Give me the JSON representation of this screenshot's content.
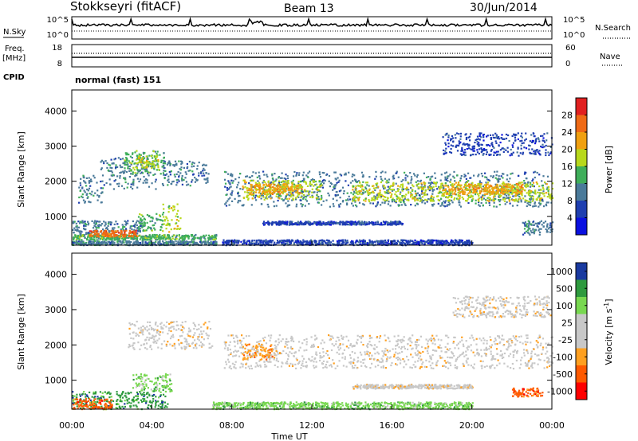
{
  "header": {
    "station": "Stokkseyri (fitACF)",
    "beam": "Beam 13",
    "date": "30/Jun/2014"
  },
  "colors": {
    "power_scale": [
      "#0a10e0",
      "#1f3fb0",
      "#4a7a9a",
      "#3fae5a",
      "#b8d81c",
      "#f0a010",
      "#ef6a16",
      "#e12020"
    ],
    "velocity_scale": [
      "#ff0000",
      "#ff5a00",
      "#ffa020",
      "#c8c8c8",
      "#c8c8c8",
      "#78d850",
      "#2e9a3e",
      "#1a3aa0"
    ]
  },
  "chart_data": [
    {
      "type": "line",
      "panel": "noise",
      "left_label": "N.Sky",
      "right_label": "N.Search",
      "left_ticks": [
        "10^5",
        "10^0"
      ],
      "right_ticks": [
        "10^5",
        "10^0"
      ]
    },
    {
      "type": "line",
      "panel": "frequency-nave",
      "left_label": "Freq.",
      "left_unit": "[MHz]",
      "right_label": "Nave",
      "left_ticks": [
        "18",
        "8"
      ],
      "right_ticks": [
        "60",
        "0"
      ]
    },
    {
      "type": "heatmap",
      "panel": "power",
      "cpid_label": "CPID",
      "cpid": "normal (fast) 151",
      "ylabel": "Slant Range [km]",
      "yticks": [
        1000,
        2000,
        3000,
        4000
      ],
      "ylim": [
        180,
        4600
      ],
      "colorbar_label": "Power [dB]",
      "colorbar_ticks": [
        4,
        8,
        12,
        16,
        20,
        24,
        28
      ],
      "colorbar_range": [
        0,
        32
      ],
      "regions": [
        {
          "t": [
            0.0,
            7.2
          ],
          "r": [
            350,
            500
          ],
          "level": 3
        },
        {
          "t": [
            0.0,
            7.2
          ],
          "r": [
            200,
            320
          ],
          "level": 2
        },
        {
          "t": [
            0.0,
            3.5
          ],
          "r": [
            520,
            900
          ],
          "level": 2
        },
        {
          "t": [
            0.8,
            3.3
          ],
          "r": [
            440,
            620
          ],
          "level": 6
        },
        {
          "t": [
            3.3,
            4.6
          ],
          "r": [
            600,
            1100
          ],
          "level": 3
        },
        {
          "t": [
            4.5,
            5.4
          ],
          "r": [
            550,
            1400
          ],
          "level": 4
        },
        {
          "t": [
            0.3,
            1.5
          ],
          "r": [
            1400,
            2200
          ],
          "level": 2
        },
        {
          "t": [
            1.4,
            4.2
          ],
          "r": [
            1800,
            2700
          ],
          "level": 2
        },
        {
          "t": [
            2.6,
            4.6
          ],
          "r": [
            2200,
            2900
          ],
          "level": 3
        },
        {
          "t": [
            3.0,
            4.3
          ],
          "r": [
            2400,
            2750
          ],
          "level": 4
        },
        {
          "t": [
            4.5,
            6.8
          ],
          "r": [
            1900,
            2600
          ],
          "level": 2
        },
        {
          "t": [
            7.6,
            24.0
          ],
          "r": [
            1300,
            2300
          ],
          "level": 2
        },
        {
          "t": [
            8.5,
            12.5
          ],
          "r": [
            1500,
            2050
          ],
          "level": 4
        },
        {
          "t": [
            8.8,
            11.5
          ],
          "r": [
            1650,
            1950
          ],
          "level": 5
        },
        {
          "t": [
            14.0,
            24.0
          ],
          "r": [
            1450,
            2000
          ],
          "level": 4
        },
        {
          "t": [
            18.5,
            22.5
          ],
          "r": [
            1650,
            1950
          ],
          "level": 5
        },
        {
          "t": [
            9.5,
            16.5
          ],
          "r": [
            780,
            880
          ],
          "level": 1
        },
        {
          "t": [
            18.5,
            24.0
          ],
          "r": [
            2750,
            3400
          ],
          "level": 1
        },
        {
          "t": [
            22.5,
            24.0
          ],
          "r": [
            500,
            900
          ],
          "level": 2
        },
        {
          "t": [
            7.5,
            20.0
          ],
          "r": [
            200,
            350
          ],
          "level": 1
        }
      ]
    },
    {
      "type": "heatmap",
      "panel": "velocity",
      "ylabel": "Slant Range [km]",
      "yticks": [
        1000,
        2000,
        3000,
        4000
      ],
      "ylim": [
        180,
        4600
      ],
      "colorbar_label": "Velocity [m s^-1]",
      "colorbar_label_main": "Velocity [m s",
      "colorbar_label_sup": "-1",
      "colorbar_label_end": "]",
      "colorbar_ticks": [
        "-1000",
        "-500",
        "-100",
        "-25",
        "25",
        "100",
        "500",
        "1000"
      ],
      "xlabel": "Time UT",
      "xticks": [
        "00:00",
        "04:00",
        "08:00",
        "12:00",
        "16:00",
        "20:00",
        "00:00"
      ],
      "xlim": [
        0,
        24
      ],
      "regions": [
        {
          "t": [
            0.0,
            4.8
          ],
          "r": [
            200,
            700
          ],
          "level": 6
        },
        {
          "t": [
            3.0,
            5.0
          ],
          "r": [
            700,
            1200
          ],
          "level": 5
        },
        {
          "t": [
            0.0,
            2.0
          ],
          "r": [
            200,
            500
          ],
          "level": 1
        },
        {
          "t": [
            2.8,
            7.0
          ],
          "r": [
            1900,
            2700
          ],
          "level": 3
        },
        {
          "t": [
            7.6,
            24.0
          ],
          "r": [
            1350,
            2300
          ],
          "level": 3
        },
        {
          "t": [
            8.5,
            10.2
          ],
          "r": [
            1600,
            2050
          ],
          "level": 2
        },
        {
          "t": [
            14.0,
            20.0
          ],
          "r": [
            780,
            900
          ],
          "level": 3
        },
        {
          "t": [
            19.0,
            24.0
          ],
          "r": [
            2800,
            3400
          ],
          "level": 3
        },
        {
          "t": [
            22.0,
            23.5
          ],
          "r": [
            550,
            800
          ],
          "level": 1
        },
        {
          "t": [
            7.0,
            20.0
          ],
          "r": [
            200,
            400
          ],
          "level": 5
        }
      ]
    }
  ]
}
